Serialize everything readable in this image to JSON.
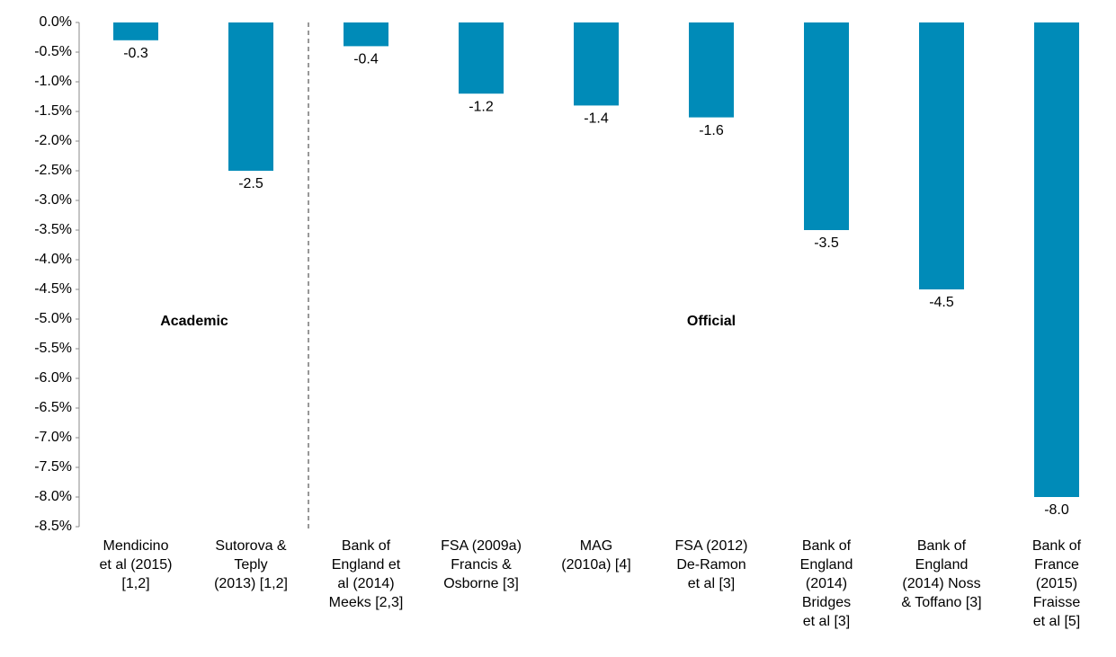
{
  "chart_data": {
    "type": "bar",
    "categories": [
      "Mendicino\net al (2015)\n[1,2]",
      "Sutorova &\nTeply\n(2013) [1,2]",
      "Bank of\nEngland et\nal (2014)\nMeeks [2,3]",
      "FSA (2009a)\nFrancis &\nOsborne  [3]",
      "MAG\n(2010a) [4]",
      "FSA (2012)\nDe-Ramon\net al [3]",
      "Bank of\nEngland\n(2014)\nBridges\net al  [3]",
      "Bank of\nEngland\n(2014) Noss\n& Toffano [3]",
      "Bank of\nFrance\n(2015)\nFraisse\net al [5]"
    ],
    "values": [
      -0.3,
      -2.5,
      -0.4,
      -1.2,
      -1.4,
      -1.6,
      -3.5,
      -4.5,
      -8
    ],
    "value_labels": [
      "-0.3",
      "-2.5",
      "-0.4",
      "-1.2",
      "-1.4",
      "-1.6",
      "-3.5",
      "-4.5",
      "-8.0"
    ],
    "color": "#008bb8",
    "ylim": [
      -8.5,
      0
    ],
    "yticks": [
      {
        "value": 0,
        "label": "0.0%"
      },
      {
        "value": -0.5,
        "label": "-0.5%"
      },
      {
        "value": -1,
        "label": "-1.0%"
      },
      {
        "value": -1.5,
        "label": "-1.5%"
      },
      {
        "value": -2,
        "label": "-2.0%"
      },
      {
        "value": -2.5,
        "label": "-2.5%"
      },
      {
        "value": -3,
        "label": "-3.0%"
      },
      {
        "value": -3.5,
        "label": "-3.5%"
      },
      {
        "value": -4,
        "label": "-4.0%"
      },
      {
        "value": -4.5,
        "label": "-4.5%"
      },
      {
        "value": -5,
        "label": "-5.0%"
      },
      {
        "value": -5.5,
        "label": "-5.5%"
      },
      {
        "value": -6,
        "label": "-6.0%"
      },
      {
        "value": -6.5,
        "label": "-6.5%"
      },
      {
        "value": -7,
        "label": "-7.0%"
      },
      {
        "value": -7.5,
        "label": "-7.5%"
      },
      {
        "value": -8,
        "label": "-8.0%"
      },
      {
        "value": -8.5,
        "label": "-8.5%"
      }
    ],
    "annotations": [
      "Academic",
      "Official"
    ],
    "grid": false
  }
}
